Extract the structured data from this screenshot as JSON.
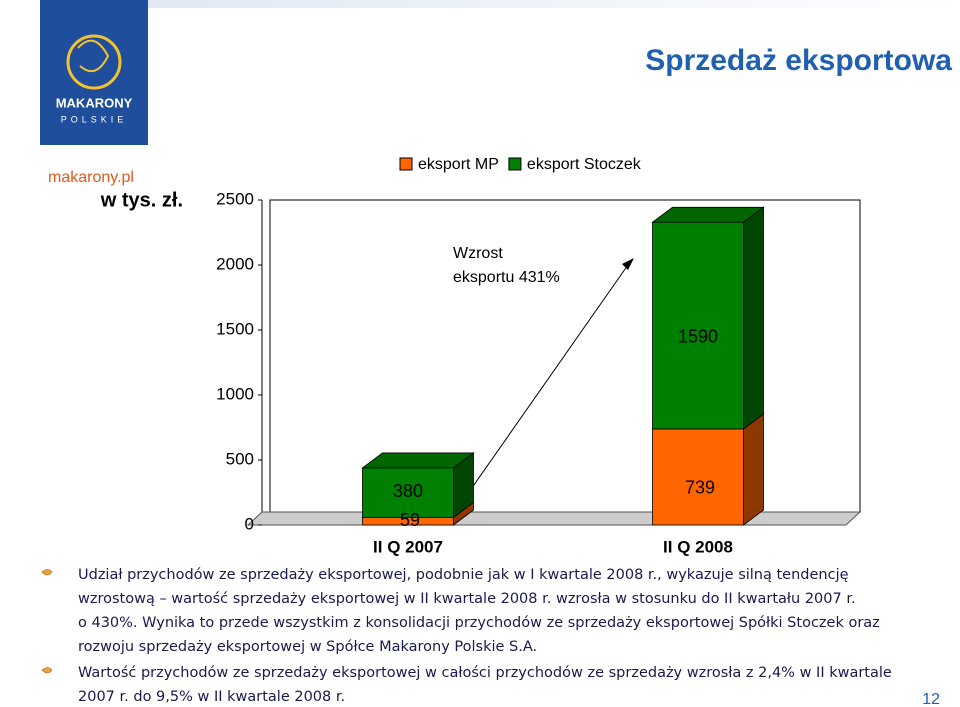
{
  "slide": {
    "title": "Sprzedaż eksportowa",
    "logo_name": "MAKARONY",
    "logo_sub": "POLSKIE",
    "website": "makarony.pl",
    "page_number": "12",
    "paragraphs": [
      {
        "lines": [
          "Udział przychodów ze sprzedaży eksportowej, podobnie jak w I kwartale 2008 r., wykazuje silną tendencję",
          "wzrostową – wartość sprzedaży eksportowej w II kwartale 2008 r. wzrosła w stosunku do II kwartału 2007 r.",
          "o 430%. Wynika to przede wszystkim z konsolidacji przychodów ze sprzedaży eksportowej Spółki Stoczek oraz",
          "rozwoju sprzedaży eksportowej w Spółce Makarony Polskie S.A."
        ]
      },
      {
        "lines": [
          "Wartość przychodów ze sprzedaży eksportowej  w całości przychodów ze sprzedaży wzrosła z 2,4% w II kwartale",
          "2007 r. do 9,5% w II kwartale 2008 r."
        ]
      }
    ]
  },
  "chart_data": {
    "type": "stacked_bar_3d",
    "y_label": "w tys. zł.",
    "categories": [
      "II Q 2007",
      "II Q 2008"
    ],
    "series": [
      {
        "name": "eksport MP",
        "color": "#ff6600",
        "values": [
          59,
          739
        ]
      },
      {
        "name": "eksport Stoczek",
        "color": "#008000",
        "values": [
          380,
          1590
        ]
      }
    ],
    "ylim": [
      0,
      2500
    ],
    "yticks": [
      0,
      500,
      1000,
      1500,
      2000,
      2500
    ],
    "annotation": {
      "lines": [
        "Wzrost",
        "eksportu 431%"
      ]
    },
    "legend": "top"
  }
}
